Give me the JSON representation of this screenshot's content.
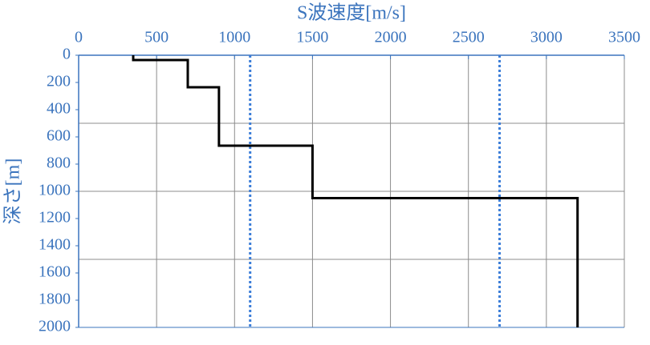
{
  "chart_data": {
    "type": "step-profile",
    "title": "S波速度[m/s]",
    "y_label": "深さ[m]",
    "xlim": [
      0,
      3500
    ],
    "xticks": [
      0,
      500,
      1000,
      1500,
      2000,
      2500,
      3000,
      3500
    ],
    "ylim": [
      0,
      2000
    ],
    "yticks": [
      0,
      200,
      400,
      600,
      800,
      1000,
      1200,
      1400,
      1600,
      1800,
      2000
    ],
    "y_inverted": true,
    "x_axis_position": "top",
    "x_grid": true,
    "y_grid_values": [
      500,
      1000,
      1500
    ],
    "series": [
      {
        "color": "#000000",
        "x": [
          350,
          350,
          700,
          700,
          900,
          900,
          1500,
          1500,
          3200,
          3200
        ],
        "y": [
          0,
          35,
          35,
          235,
          235,
          665,
          665,
          1050,
          1050,
          2000
        ]
      }
    ],
    "reference_lines": [
      {
        "value": 1100,
        "color": "#3b7dd8"
      },
      {
        "value": 2700,
        "color": "#3b7dd8"
      }
    ]
  }
}
